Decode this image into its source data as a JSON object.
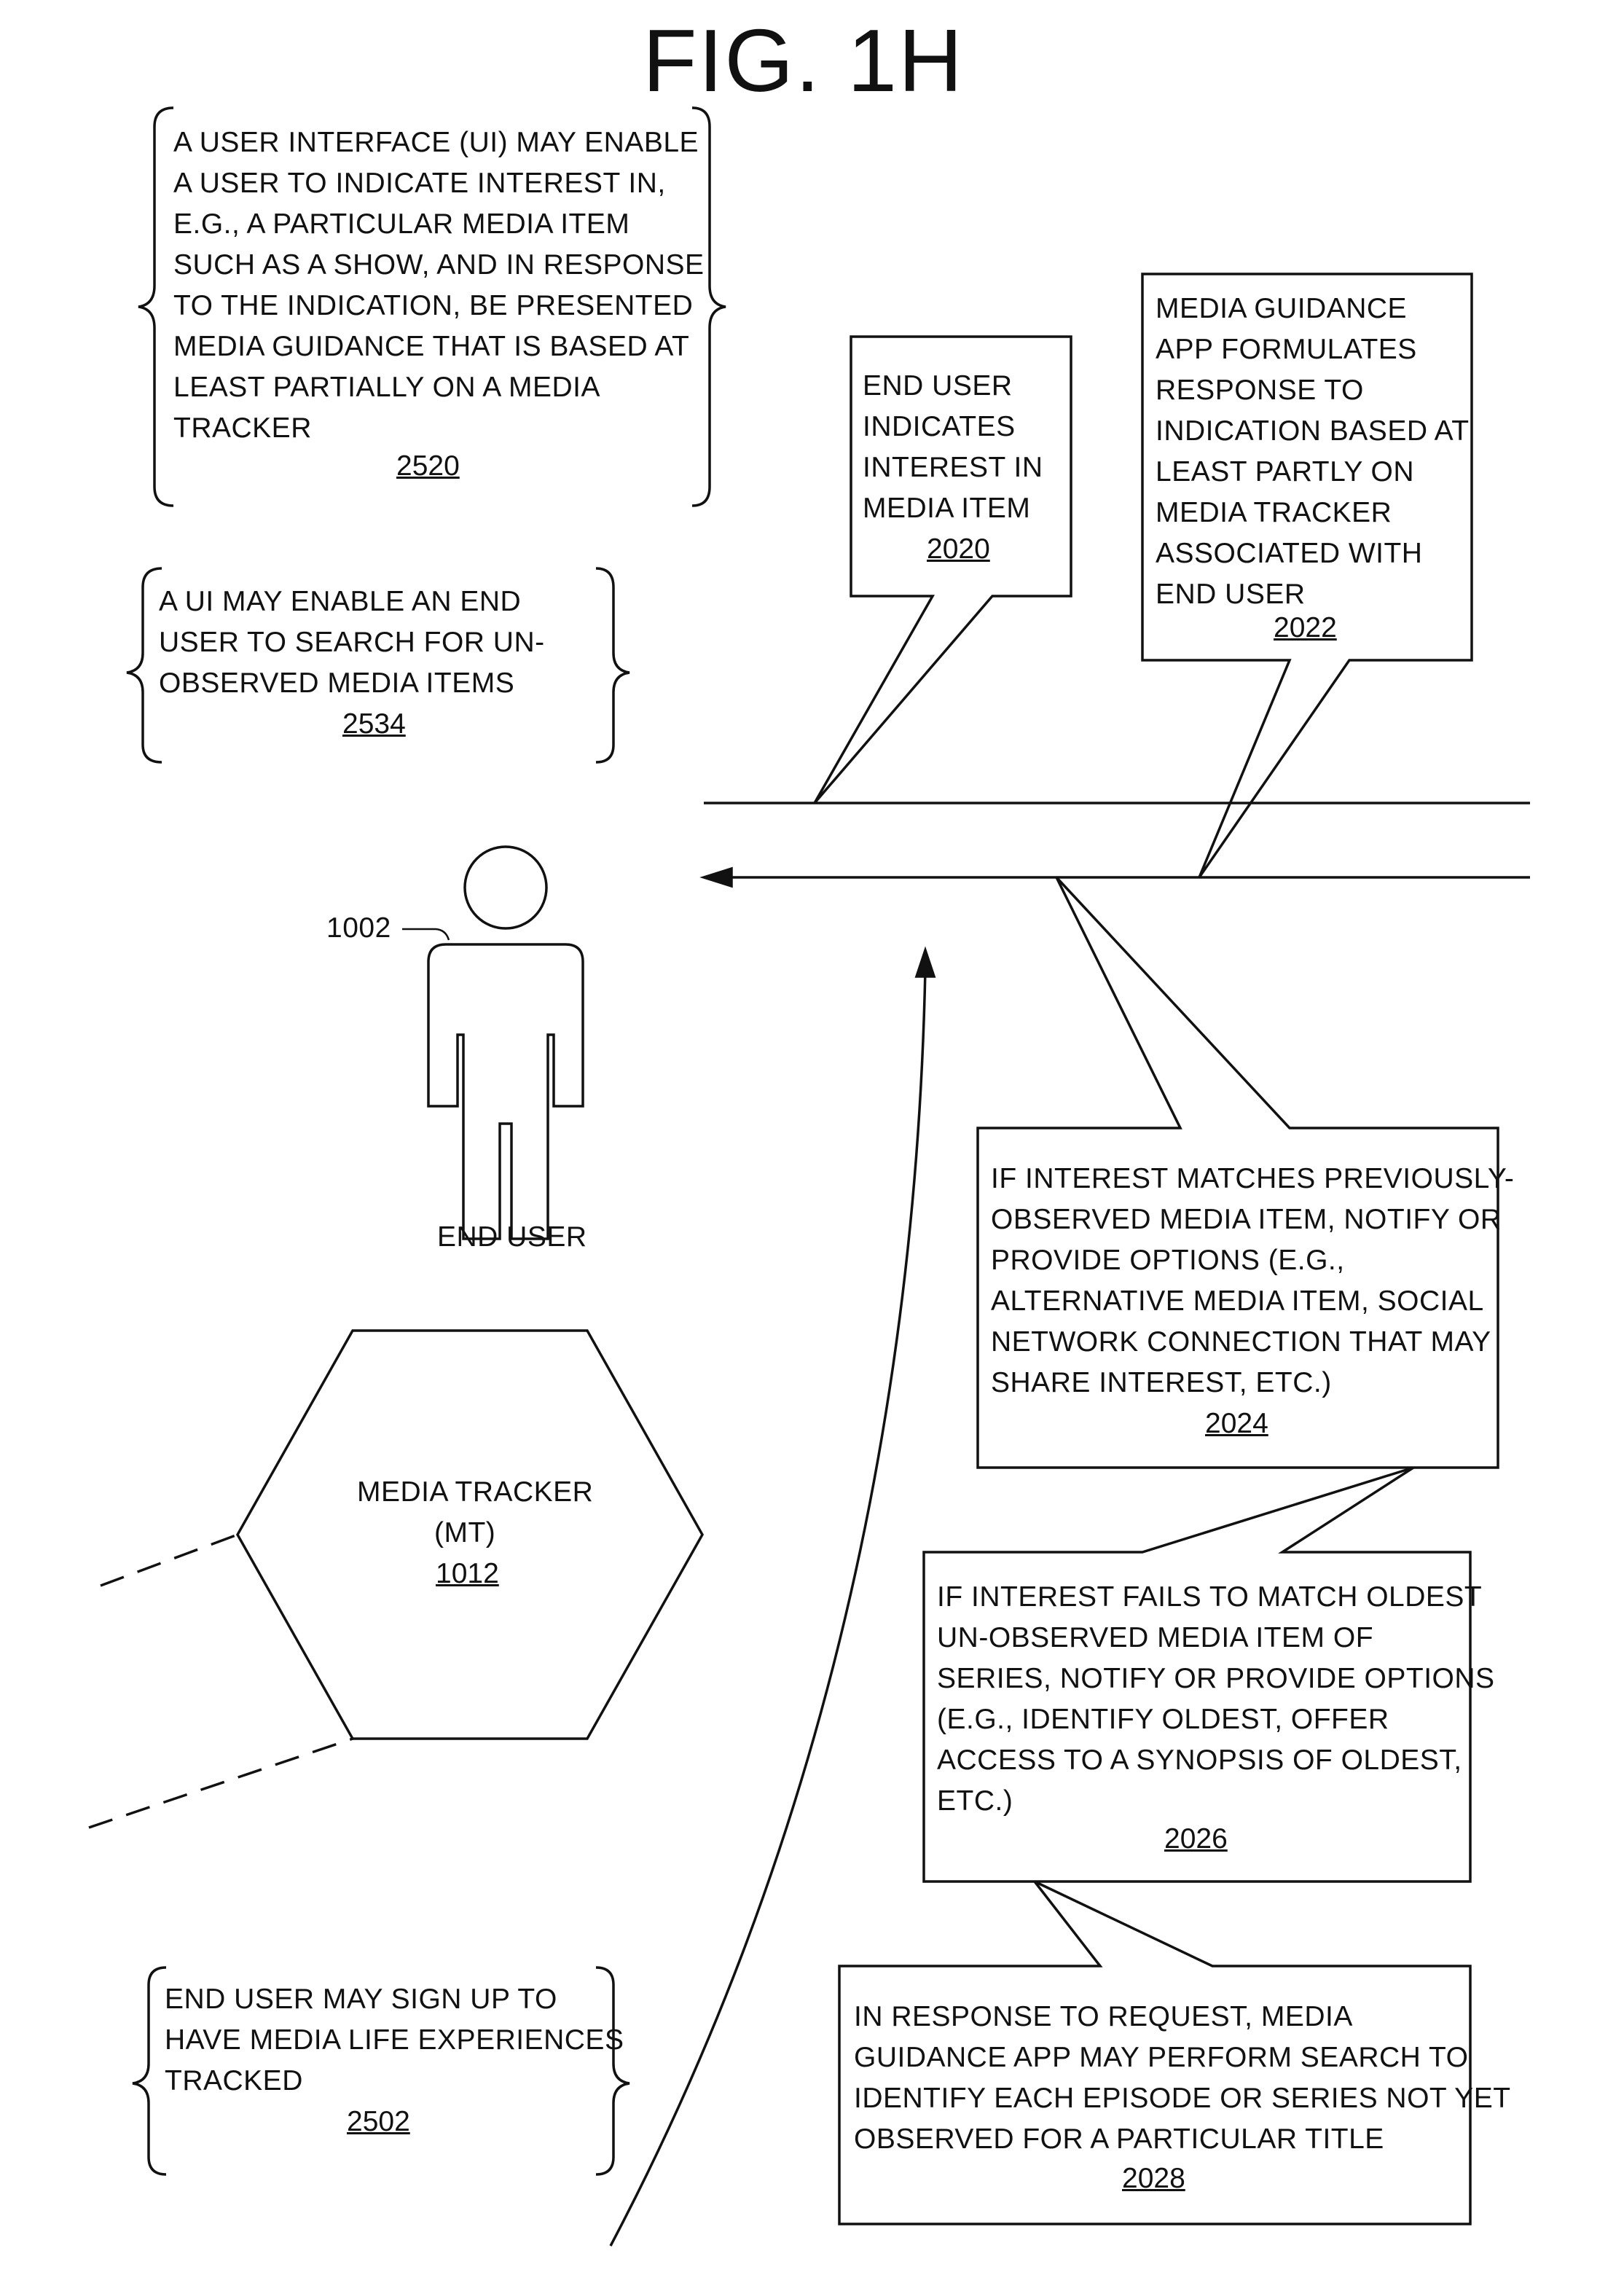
{
  "figure_title": "FIG. 1H",
  "ui_note": {
    "lines": [
      "A USER INTERFACE (UI) MAY ENABLE",
      "A USER TO INDICATE INTEREST IN,",
      "E.G., A PARTICULAR MEDIA ITEM",
      "SUCH AS A SHOW, AND IN RESPONSE",
      "TO THE INDICATION, BE PRESENTED",
      "MEDIA GUIDANCE THAT IS BASED AT",
      "LEAST PARTIALLY ON A MEDIA",
      "TRACKER"
    ],
    "ref": "2520"
  },
  "search_note": {
    "lines": [
      "A UI MAY ENABLE AN END",
      "USER TO SEARCH FOR UN-",
      "OBSERVED MEDIA ITEMS"
    ],
    "ref": "2534"
  },
  "signup_note": {
    "lines": [
      "END USER MAY SIGN UP TO",
      "HAVE MEDIA LIFE EXPERIENCES",
      "TRACKED"
    ],
    "ref": "2502"
  },
  "end_user": {
    "ref": "1002",
    "label": "END USER"
  },
  "media_tracker": {
    "lines": [
      "MEDIA TRACKER",
      "(MT)"
    ],
    "ref": "1012"
  },
  "callouts": {
    "interest": {
      "lines": [
        "END USER",
        "INDICATES",
        "INTEREST IN",
        "MEDIA ITEM"
      ],
      "ref": "2020"
    },
    "formulate": {
      "lines": [
        "MEDIA GUIDANCE",
        "APP FORMULATES",
        "RESPONSE TO",
        "INDICATION BASED AT",
        "LEAST PARTLY ON",
        "MEDIA TRACKER",
        "ASSOCIATED WITH",
        "END USER"
      ],
      "ref": "2022"
    },
    "match": {
      "lines": [
        "IF INTEREST MATCHES PREVIOUSLY-",
        "OBSERVED MEDIA ITEM, NOTIFY OR",
        "PROVIDE OPTIONS (E.G.,",
        "ALTERNATIVE MEDIA ITEM, SOCIAL",
        "NETWORK CONNECTION THAT MAY",
        "SHARE INTEREST, ETC.)"
      ],
      "ref": "2024"
    },
    "fail": {
      "lines": [
        "IF INTEREST FAILS TO MATCH OLDEST",
        "UN-OBSERVED MEDIA ITEM OF",
        "SERIES, NOTIFY OR PROVIDE OPTIONS",
        "(E.G., IDENTIFY OLDEST, OFFER",
        "ACCESS TO A SYNOPSIS OF OLDEST,",
        "ETC.)"
      ],
      "ref": "2026"
    },
    "search_response": {
      "lines": [
        "IN RESPONSE TO REQUEST, MEDIA",
        "GUIDANCE APP MAY PERFORM SEARCH TO",
        "IDENTIFY EACH EPISODE OR SERIES NOT YET",
        "OBSERVED FOR A PARTICULAR TITLE"
      ],
      "ref": "2028"
    }
  }
}
